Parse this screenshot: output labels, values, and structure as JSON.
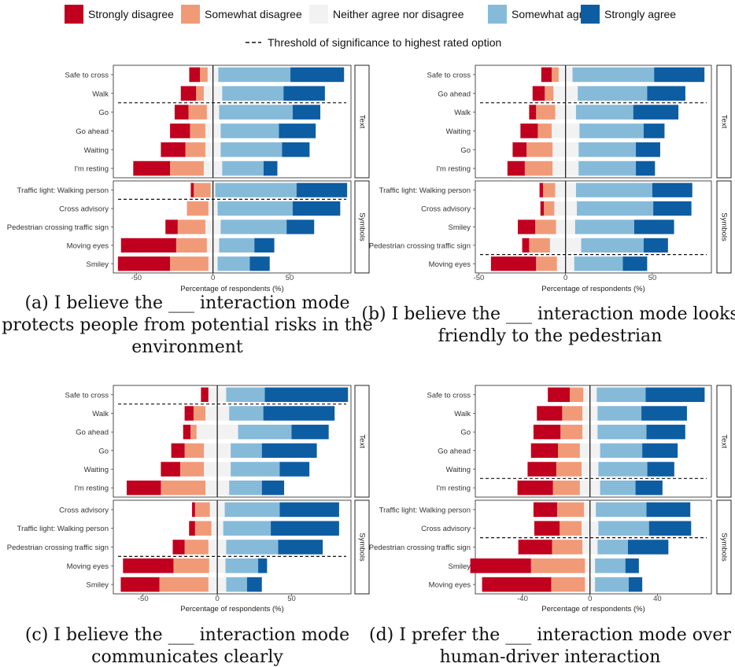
{
  "legend": {
    "items": [
      {
        "label": "Strongly disagree",
        "color": "#C0001E"
      },
      {
        "label": "Somewhat disagree",
        "color": "#F19A78"
      },
      {
        "label": "Neither agree nor disagree",
        "color": "#F2F2F2"
      },
      {
        "label": "Somewhat agree",
        "color": "#86BAD9"
      },
      {
        "label": "Strongly agree",
        "color": "#0D5DA3"
      }
    ],
    "threshold_label": "Threshold of significance to highest rated option"
  },
  "chart_data": [
    {
      "type": "bar",
      "stacked": "diverging",
      "xlabel": "Percentage of respondents (%)",
      "xticks": [
        -50,
        0,
        50
      ],
      "xlim": [
        -65,
        90
      ],
      "caption": [
        "(a) I believe the ___ interaction mode",
        "protects people from potential risks in the",
        "environment"
      ],
      "groups": [
        {
          "name": "Text",
          "threshold_after": 2,
          "rows": [
            {
              "label": "Safe to cross",
              "values": [
                7,
                5,
                7,
                47,
                35
              ]
            },
            {
              "label": "Walk",
              "values": [
                10,
                5,
                12,
                40,
                27
              ]
            },
            {
              "label": "Go",
              "values": [
                9,
                12,
                8,
                48,
                18
              ]
            },
            {
              "label": "Go ahead",
              "values": [
                13,
                10,
                10,
                38,
                24
              ]
            },
            {
              "label": "Waiting",
              "values": [
                16,
                13,
                10,
                40,
                18
              ]
            },
            {
              "label": "I'm resting",
              "values": [
                24,
                22,
                12,
                27,
                9
              ]
            }
          ]
        },
        {
          "name": "Symbols",
          "threshold_after": 1,
          "rows": [
            {
              "label": "Traffic light: Walking person",
              "values": [
                2,
                11,
                3,
                53,
                33
              ]
            },
            {
              "label": "Cross advisory",
              "values": [
                0,
                14,
                6,
                49,
                31
              ]
            },
            {
              "label": "Pedestrian crossing traffic sign",
              "values": [
                8,
                18,
                10,
                43,
                18
              ]
            },
            {
              "label": "Moving eyes",
              "values": [
                36,
                20,
                8,
                23,
                13
              ]
            },
            {
              "label": "Smiley",
              "values": [
                34,
                25,
                6,
                21,
                13
              ]
            }
          ]
        }
      ]
    },
    {
      "type": "bar",
      "stacked": "diverging",
      "xlabel": "Percentage of respondents (%)",
      "xticks": [
        -50,
        0,
        50
      ],
      "xlim": [
        -52,
        84
      ],
      "caption": [
        "(b) I believe the ___ interaction mode looks",
        "friendly to the pedestrian"
      ],
      "groups": [
        {
          "name": "Text",
          "threshold_after": 2,
          "rows": [
            {
              "label": "Safe to cross",
              "values": [
                6,
                4,
                8,
                47,
                29
              ]
            },
            {
              "label": "Go ahead",
              "values": [
                7,
                5,
                14,
                40,
                22
              ]
            },
            {
              "label": "Walk",
              "values": [
                4,
                11,
                12,
                33,
                26
              ]
            },
            {
              "label": "Waiting",
              "values": [
                10,
                8,
                16,
                37,
                12
              ]
            },
            {
              "label": "Go",
              "values": [
                8,
                15,
                15,
                33,
                14
              ]
            },
            {
              "label": "I'm resting",
              "values": [
                10,
                16,
                15,
                33,
                11
              ]
            }
          ]
        },
        {
          "name": "Symbols",
          "threshold_after": 4,
          "rows": [
            {
              "label": "Traffic light: Walking person",
              "values": [
                2,
                7,
                12,
                44,
                23
              ]
            },
            {
              "label": "Cross advisory",
              "values": [
                2,
                6,
                13,
                44,
                22
              ]
            },
            {
              "label": "Smiley",
              "values": [
                10,
                12,
                11,
                34,
                23
              ]
            },
            {
              "label": "Pedestrian crossing traffic sign",
              "values": [
                4,
                12,
                18,
                36,
                14
              ]
            },
            {
              "label": "Moving eyes",
              "values": [
                26,
                12,
                10,
                28,
                14
              ]
            }
          ]
        }
      ]
    },
    {
      "type": "bar",
      "stacked": "diverging",
      "xlabel": "Percentage of respondents (%)",
      "xticks": [
        -50,
        0,
        50
      ],
      "xlim": [
        -70,
        90
      ],
      "caption": [
        "(c) I believe the ___ interaction mode",
        "communicates clearly"
      ],
      "groups": [
        {
          "name": "Text",
          "threshold_after": 1,
          "rows": [
            {
              "label": "Safe to cross",
              "values": [
                5,
                0,
                12,
                26,
                56
              ]
            },
            {
              "label": "Walk",
              "values": [
                6,
                8,
                16,
                23,
                48
              ]
            },
            {
              "label": "Go ahead",
              "values": [
                5,
                4,
                28,
                36,
                25
              ]
            },
            {
              "label": "Go",
              "values": [
                9,
                13,
                18,
                21,
                37
              ]
            },
            {
              "label": "Waiting",
              "values": [
                13,
                16,
                18,
                33,
                20
              ]
            },
            {
              "label": "I'm resting",
              "values": [
                23,
                30,
                16,
                22,
                15
              ]
            }
          ]
        },
        {
          "name": "Symbols",
          "threshold_after": 3,
          "rows": [
            {
              "label": "Cross advisory",
              "values": [
                2,
                10,
                10,
                37,
                40
              ]
            },
            {
              "label": "Traffic light: Walking person",
              "values": [
                4,
                11,
                8,
                32,
                46
              ]
            },
            {
              "label": "Pedestrian crossing traffic sign",
              "values": [
                8,
                16,
                12,
                35,
                30
              ]
            },
            {
              "label": "Moving eyes",
              "values": [
                34,
                24,
                11,
                22,
                6
              ]
            },
            {
              "label": "Smiley",
              "values": [
                26,
                33,
                12,
                14,
                10
              ]
            }
          ]
        }
      ]
    },
    {
      "type": "bar",
      "stacked": "diverging",
      "xlabel": "Percentage of respondents (%)",
      "xticks": [
        -40,
        0,
        40
      ],
      "xlim": [
        -68,
        72
      ],
      "caption": [
        "(d) I prefer the ___ interaction mode over",
        "human-driver interaction"
      ],
      "groups": [
        {
          "name": "Text",
          "threshold_after": 5,
          "rows": [
            {
              "label": "Safe to cross",
              "values": [
                13,
                8,
                8,
                29,
                35
              ]
            },
            {
              "label": "Walk",
              "values": [
                15,
                12,
                9,
                26,
                27
              ]
            },
            {
              "label": "Go",
              "values": [
                16,
                13,
                9,
                29,
                23
              ]
            },
            {
              "label": "Go ahead",
              "values": [
                16,
                13,
                12,
                25,
                21
              ]
            },
            {
              "label": "Waiting",
              "values": [
                17,
                15,
                10,
                29,
                16
              ]
            },
            {
              "label": "I'm resting",
              "values": [
                21,
                16,
                12,
                21,
                16
              ]
            }
          ]
        },
        {
          "name": "Symbols",
          "threshold_after": 2,
          "rows": [
            {
              "label": "Traffic light: Walking person",
              "values": [
                14,
                16,
                7,
                30,
                26
              ]
            },
            {
              "label": "Cross advisory",
              "values": [
                15,
                13,
                10,
                30,
                25
              ]
            },
            {
              "label": "Pedestrian crossing traffic sign",
              "values": [
                20,
                18,
                9,
                18,
                24
              ]
            },
            {
              "label": "Smiley",
              "values": [
                36,
                32,
                6,
                18,
                8
              ]
            },
            {
              "label": "Moving eyes",
              "values": [
                41,
                20,
                6,
                20,
                8
              ]
            }
          ]
        }
      ]
    }
  ]
}
